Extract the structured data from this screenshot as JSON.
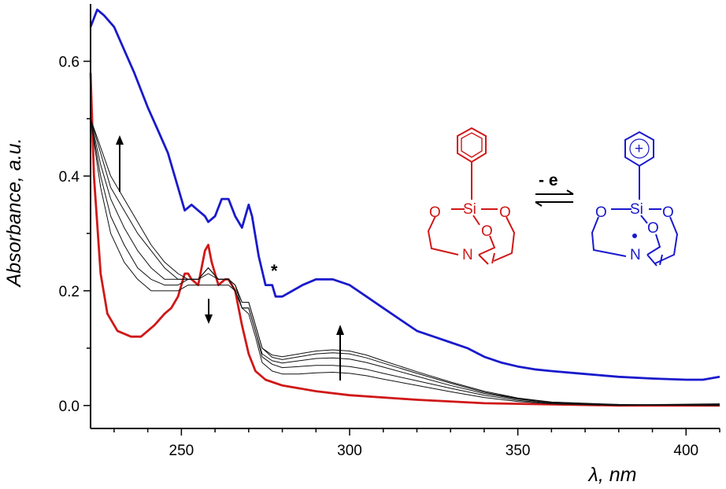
{
  "chart_data": {
    "type": "line",
    "title": "",
    "xlabel": "λ, nm",
    "ylabel": "Absorbance, a.u.",
    "xlim": [
      223,
      410
    ],
    "ylim": [
      -0.04,
      0.7
    ],
    "x_ticks": [
      250,
      300,
      350,
      400
    ],
    "y_ticks": [
      0.0,
      0.2,
      0.4,
      0.6
    ],
    "grid": false,
    "legend": "none",
    "series": [
      {
        "color": "#1a1acc",
        "width": 2.8,
        "points": [
          [
            223,
            0.66
          ],
          [
            225,
            0.69
          ],
          [
            227,
            0.68
          ],
          [
            230,
            0.66
          ],
          [
            233,
            0.62
          ],
          [
            236,
            0.58
          ],
          [
            240,
            0.52
          ],
          [
            243,
            0.48
          ],
          [
            246,
            0.44
          ],
          [
            249,
            0.38
          ],
          [
            251,
            0.34
          ],
          [
            253,
            0.35
          ],
          [
            255,
            0.34
          ],
          [
            257,
            0.33
          ],
          [
            258,
            0.32
          ],
          [
            260,
            0.33
          ],
          [
            262,
            0.36
          ],
          [
            264,
            0.36
          ],
          [
            266,
            0.33
          ],
          [
            268,
            0.31
          ],
          [
            270,
            0.35
          ],
          [
            271,
            0.33
          ],
          [
            273,
            0.26
          ],
          [
            275,
            0.21
          ],
          [
            276,
            0.21
          ],
          [
            277,
            0.21
          ],
          [
            278,
            0.19
          ],
          [
            280,
            0.19
          ],
          [
            283,
            0.2
          ],
          [
            286,
            0.21
          ],
          [
            290,
            0.22
          ],
          [
            295,
            0.22
          ],
          [
            300,
            0.21
          ],
          [
            305,
            0.19
          ],
          [
            310,
            0.17
          ],
          [
            315,
            0.15
          ],
          [
            320,
            0.13
          ],
          [
            325,
            0.12
          ],
          [
            330,
            0.11
          ],
          [
            335,
            0.1
          ],
          [
            340,
            0.085
          ],
          [
            345,
            0.075
          ],
          [
            350,
            0.068
          ],
          [
            355,
            0.063
          ],
          [
            360,
            0.06
          ],
          [
            370,
            0.055
          ],
          [
            380,
            0.05
          ],
          [
            390,
            0.047
          ],
          [
            400,
            0.045
          ],
          [
            405,
            0.045
          ],
          [
            410,
            0.05
          ]
        ]
      },
      {
        "color": "#d01818",
        "width": 2.8,
        "points": [
          [
            223,
            0.58
          ],
          [
            224,
            0.4
          ],
          [
            226,
            0.23
          ],
          [
            228,
            0.16
          ],
          [
            231,
            0.13
          ],
          [
            235,
            0.12
          ],
          [
            238,
            0.12
          ],
          [
            242,
            0.14
          ],
          [
            245,
            0.16
          ],
          [
            247,
            0.17
          ],
          [
            249,
            0.19
          ],
          [
            251,
            0.23
          ],
          [
            252,
            0.23
          ],
          [
            253,
            0.22
          ],
          [
            255,
            0.21
          ],
          [
            257,
            0.27
          ],
          [
            258,
            0.28
          ],
          [
            259,
            0.25
          ],
          [
            261,
            0.21
          ],
          [
            263,
            0.22
          ],
          [
            264,
            0.22
          ],
          [
            266,
            0.2
          ],
          [
            268,
            0.14
          ],
          [
            270,
            0.09
          ],
          [
            272,
            0.06
          ],
          [
            275,
            0.045
          ],
          [
            280,
            0.035
          ],
          [
            290,
            0.025
          ],
          [
            300,
            0.018
          ],
          [
            320,
            0.01
          ],
          [
            340,
            0.004
          ],
          [
            360,
            0.002
          ],
          [
            380,
            0.0
          ],
          [
            410,
            0.0
          ]
        ]
      },
      {
        "color": "#111111",
        "width": 1.0,
        "points": [
          [
            223,
            0.5
          ],
          [
            226,
            0.38
          ],
          [
            229,
            0.3
          ],
          [
            233,
            0.25
          ],
          [
            237,
            0.22
          ],
          [
            241,
            0.2
          ],
          [
            245,
            0.2
          ],
          [
            249,
            0.2
          ],
          [
            252,
            0.21
          ],
          [
            255,
            0.21
          ],
          [
            258,
            0.21
          ],
          [
            261,
            0.21
          ],
          [
            264,
            0.21
          ],
          [
            266,
            0.2
          ],
          [
            268,
            0.17
          ],
          [
            270,
            0.16
          ],
          [
            272,
            0.12
          ],
          [
            274,
            0.075
          ],
          [
            277,
            0.06
          ],
          [
            280,
            0.055
          ],
          [
            285,
            0.055
          ],
          [
            290,
            0.057
          ],
          [
            295,
            0.058
          ],
          [
            300,
            0.056
          ],
          [
            305,
            0.052
          ],
          [
            310,
            0.046
          ],
          [
            320,
            0.035
          ],
          [
            330,
            0.024
          ],
          [
            340,
            0.014
          ],
          [
            350,
            0.007
          ],
          [
            360,
            0.003
          ],
          [
            380,
            0.0
          ],
          [
            410,
            0.002
          ]
        ]
      },
      {
        "color": "#111111",
        "width": 1.0,
        "points": [
          [
            223,
            0.5
          ],
          [
            226,
            0.4
          ],
          [
            229,
            0.33
          ],
          [
            233,
            0.28
          ],
          [
            237,
            0.24
          ],
          [
            241,
            0.22
          ],
          [
            245,
            0.21
          ],
          [
            249,
            0.21
          ],
          [
            252,
            0.22
          ],
          [
            255,
            0.22
          ],
          [
            258,
            0.23
          ],
          [
            261,
            0.22
          ],
          [
            264,
            0.22
          ],
          [
            266,
            0.2
          ],
          [
            268,
            0.17
          ],
          [
            270,
            0.17
          ],
          [
            272,
            0.13
          ],
          [
            274,
            0.085
          ],
          [
            277,
            0.072
          ],
          [
            280,
            0.066
          ],
          [
            285,
            0.068
          ],
          [
            290,
            0.07
          ],
          [
            295,
            0.07
          ],
          [
            300,
            0.068
          ],
          [
            305,
            0.063
          ],
          [
            310,
            0.056
          ],
          [
            320,
            0.043
          ],
          [
            330,
            0.03
          ],
          [
            340,
            0.018
          ],
          [
            350,
            0.009
          ],
          [
            360,
            0.004
          ],
          [
            380,
            0.001
          ],
          [
            410,
            0.001
          ]
        ]
      },
      {
        "color": "#111111",
        "width": 1.0,
        "points": [
          [
            223,
            0.5
          ],
          [
            226,
            0.42
          ],
          [
            229,
            0.36
          ],
          [
            233,
            0.31
          ],
          [
            237,
            0.27
          ],
          [
            241,
            0.24
          ],
          [
            245,
            0.22
          ],
          [
            249,
            0.22
          ],
          [
            252,
            0.22
          ],
          [
            255,
            0.22
          ],
          [
            258,
            0.24
          ],
          [
            261,
            0.22
          ],
          [
            264,
            0.22
          ],
          [
            266,
            0.21
          ],
          [
            268,
            0.17
          ],
          [
            270,
            0.17
          ],
          [
            272,
            0.13
          ],
          [
            274,
            0.09
          ],
          [
            277,
            0.078
          ],
          [
            280,
            0.074
          ],
          [
            285,
            0.078
          ],
          [
            290,
            0.082
          ],
          [
            295,
            0.083
          ],
          [
            300,
            0.081
          ],
          [
            305,
            0.075
          ],
          [
            310,
            0.067
          ],
          [
            320,
            0.051
          ],
          [
            330,
            0.035
          ],
          [
            340,
            0.021
          ],
          [
            350,
            0.011
          ],
          [
            360,
            0.005
          ],
          [
            380,
            0.001
          ],
          [
            410,
            0.0
          ]
        ]
      },
      {
        "color": "#111111",
        "width": 1.0,
        "points": [
          [
            223,
            0.5
          ],
          [
            226,
            0.44
          ],
          [
            229,
            0.38
          ],
          [
            233,
            0.34
          ],
          [
            237,
            0.3
          ],
          [
            241,
            0.27
          ],
          [
            245,
            0.24
          ],
          [
            249,
            0.22
          ],
          [
            252,
            0.22
          ],
          [
            255,
            0.22
          ],
          [
            258,
            0.24
          ],
          [
            261,
            0.22
          ],
          [
            264,
            0.22
          ],
          [
            266,
            0.21
          ],
          [
            268,
            0.18
          ],
          [
            270,
            0.18
          ],
          [
            272,
            0.14
          ],
          [
            274,
            0.1
          ],
          [
            277,
            0.084
          ],
          [
            280,
            0.08
          ],
          [
            285,
            0.085
          ],
          [
            290,
            0.09
          ],
          [
            295,
            0.092
          ],
          [
            300,
            0.09
          ],
          [
            305,
            0.083
          ],
          [
            310,
            0.074
          ],
          [
            320,
            0.056
          ],
          [
            330,
            0.039
          ],
          [
            340,
            0.023
          ],
          [
            350,
            0.012
          ],
          [
            360,
            0.006
          ],
          [
            380,
            0.001
          ],
          [
            410,
            0.003
          ]
        ]
      },
      {
        "color": "#111111",
        "width": 1.0,
        "points": [
          [
            223,
            0.5
          ],
          [
            226,
            0.45
          ],
          [
            229,
            0.4
          ],
          [
            233,
            0.36
          ],
          [
            237,
            0.32
          ],
          [
            241,
            0.28
          ],
          [
            245,
            0.25
          ],
          [
            249,
            0.23
          ],
          [
            252,
            0.22
          ],
          [
            255,
            0.22
          ],
          [
            258,
            0.24
          ],
          [
            261,
            0.22
          ],
          [
            264,
            0.22
          ],
          [
            266,
            0.21
          ],
          [
            268,
            0.18
          ],
          [
            270,
            0.18
          ],
          [
            272,
            0.14
          ],
          [
            274,
            0.1
          ],
          [
            277,
            0.088
          ],
          [
            280,
            0.085
          ],
          [
            285,
            0.09
          ],
          [
            290,
            0.095
          ],
          [
            295,
            0.097
          ],
          [
            300,
            0.095
          ],
          [
            305,
            0.088
          ],
          [
            310,
            0.078
          ],
          [
            320,
            0.059
          ],
          [
            330,
            0.041
          ],
          [
            340,
            0.025
          ],
          [
            350,
            0.013
          ],
          [
            360,
            0.006
          ],
          [
            380,
            0.002
          ],
          [
            410,
            0.0
          ]
        ]
      }
    ]
  },
  "annotations": {
    "asterisk": "*",
    "reaction": "- e",
    "si": "Si",
    "o": "O",
    "n": "N",
    "plus": "+"
  }
}
